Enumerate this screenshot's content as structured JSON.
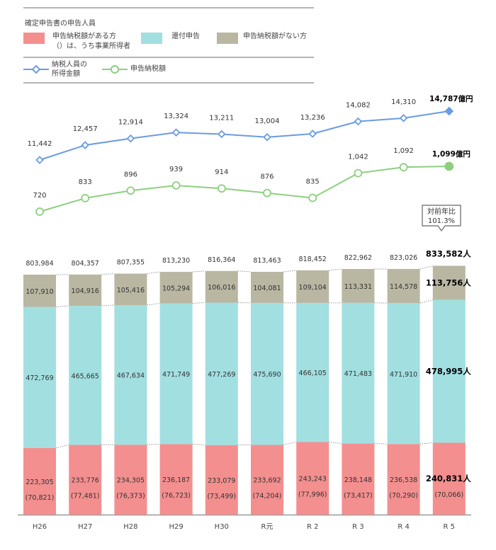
{
  "legend": {
    "title": "確定申告書の申告人員",
    "items": [
      {
        "label": "申告納税額がある方",
        "sublabel": "（）は、うち事業所得者",
        "color": "#f48f8f"
      },
      {
        "label": "還付申告",
        "color": "#a2dfe1"
      },
      {
        "label": "申告納税額がない方",
        "color": "#b9b7a2"
      }
    ],
    "lines": [
      {
        "label_line1": "納税人員の",
        "label_line2": "所得金額",
        "color": "#6a9be5",
        "marker": "diamond"
      },
      {
        "label": "申告納税額",
        "color": "#8dcf80",
        "marker": "circle"
      }
    ]
  },
  "callout": {
    "line1": "対前年比",
    "line2": "101.3%"
  },
  "chart_data": [
    {
      "type": "line",
      "title": "納税人員の所得金額",
      "unit": "億円",
      "categories": [
        "H26",
        "H27",
        "H28",
        "H29",
        "H30",
        "R元",
        "R 2",
        "R 3",
        "R 4",
        "R 5"
      ],
      "values": [
        11442,
        12457,
        12914,
        13324,
        13211,
        13004,
        13236,
        14082,
        14310,
        14787
      ],
      "labels": [
        "11,442",
        "12,457",
        "12,914",
        "13,324",
        "13,211",
        "13,004",
        "13,236",
        "14,082",
        "14,310",
        "14,787億円"
      ],
      "color": "#6a9be5"
    },
    {
      "type": "line",
      "title": "申告納税額",
      "unit": "億円",
      "categories": [
        "H26",
        "H27",
        "H28",
        "H29",
        "H30",
        "R元",
        "R 2",
        "R 3",
        "R 4",
        "R 5"
      ],
      "values": [
        720,
        833,
        896,
        939,
        914,
        876,
        835,
        1042,
        1092,
        1099
      ],
      "labels": [
        "720",
        "833",
        "896",
        "939",
        "914",
        "876",
        "835",
        "1,042",
        "1,092",
        "1,099億円"
      ],
      "color": "#8dcf80"
    },
    {
      "type": "bar",
      "stacked": true,
      "title": "確定申告書の申告人員",
      "unit": "人",
      "categories": [
        "H26",
        "H27",
        "H28",
        "H29",
        "H30",
        "R元",
        "R 2",
        "R 3",
        "R 4",
        "R 5"
      ],
      "series": [
        {
          "name": "申告納税額がある方",
          "color": "#f48f8f",
          "values": [
            223305,
            233776,
            234305,
            236187,
            233079,
            233692,
            243243,
            238148,
            236538,
            240831
          ],
          "labels": [
            "223,305",
            "233,776",
            "234,305",
            "236,187",
            "233,079",
            "233,692",
            "243,243",
            "238,148",
            "236,538",
            "240,831人"
          ],
          "sub_values": [
            70821,
            77481,
            76373,
            76723,
            73499,
            74204,
            77996,
            73417,
            70290,
            70066
          ],
          "sub_labels": [
            "(70,821)",
            "(77,481)",
            "(76,373)",
            "(76,723)",
            "(73,499)",
            "(74,204)",
            "(77,996)",
            "(73,417)",
            "(70,290)",
            "(70,066)"
          ]
        },
        {
          "name": "還付申告",
          "color": "#a2dfe1",
          "values": [
            472769,
            465665,
            467634,
            471749,
            477269,
            475690,
            466105,
            471483,
            471910,
            478995
          ],
          "labels": [
            "472,769",
            "465,665",
            "467,634",
            "471,749",
            "477,269",
            "475,690",
            "466,105",
            "471,483",
            "471,910",
            "478,995人"
          ]
        },
        {
          "name": "申告納税額がない方",
          "color": "#b9b7a2",
          "values": [
            107910,
            104916,
            105416,
            105294,
            106016,
            104081,
            109104,
            113331,
            114578,
            113756
          ],
          "labels": [
            "107,910",
            "104,916",
            "105,416",
            "105,294",
            "106,016",
            "104,081",
            "109,104",
            "113,331",
            "114,578",
            "113,756人"
          ]
        }
      ],
      "totals": [
        803984,
        804357,
        807355,
        813230,
        816364,
        813463,
        818452,
        822962,
        823026,
        833582
      ],
      "total_labels": [
        "803,984",
        "804,357",
        "807,355",
        "813,230",
        "816,364",
        "813,463",
        "818,452",
        "822,962",
        "823,026",
        "833,582人"
      ],
      "highlight_index": 9
    }
  ]
}
